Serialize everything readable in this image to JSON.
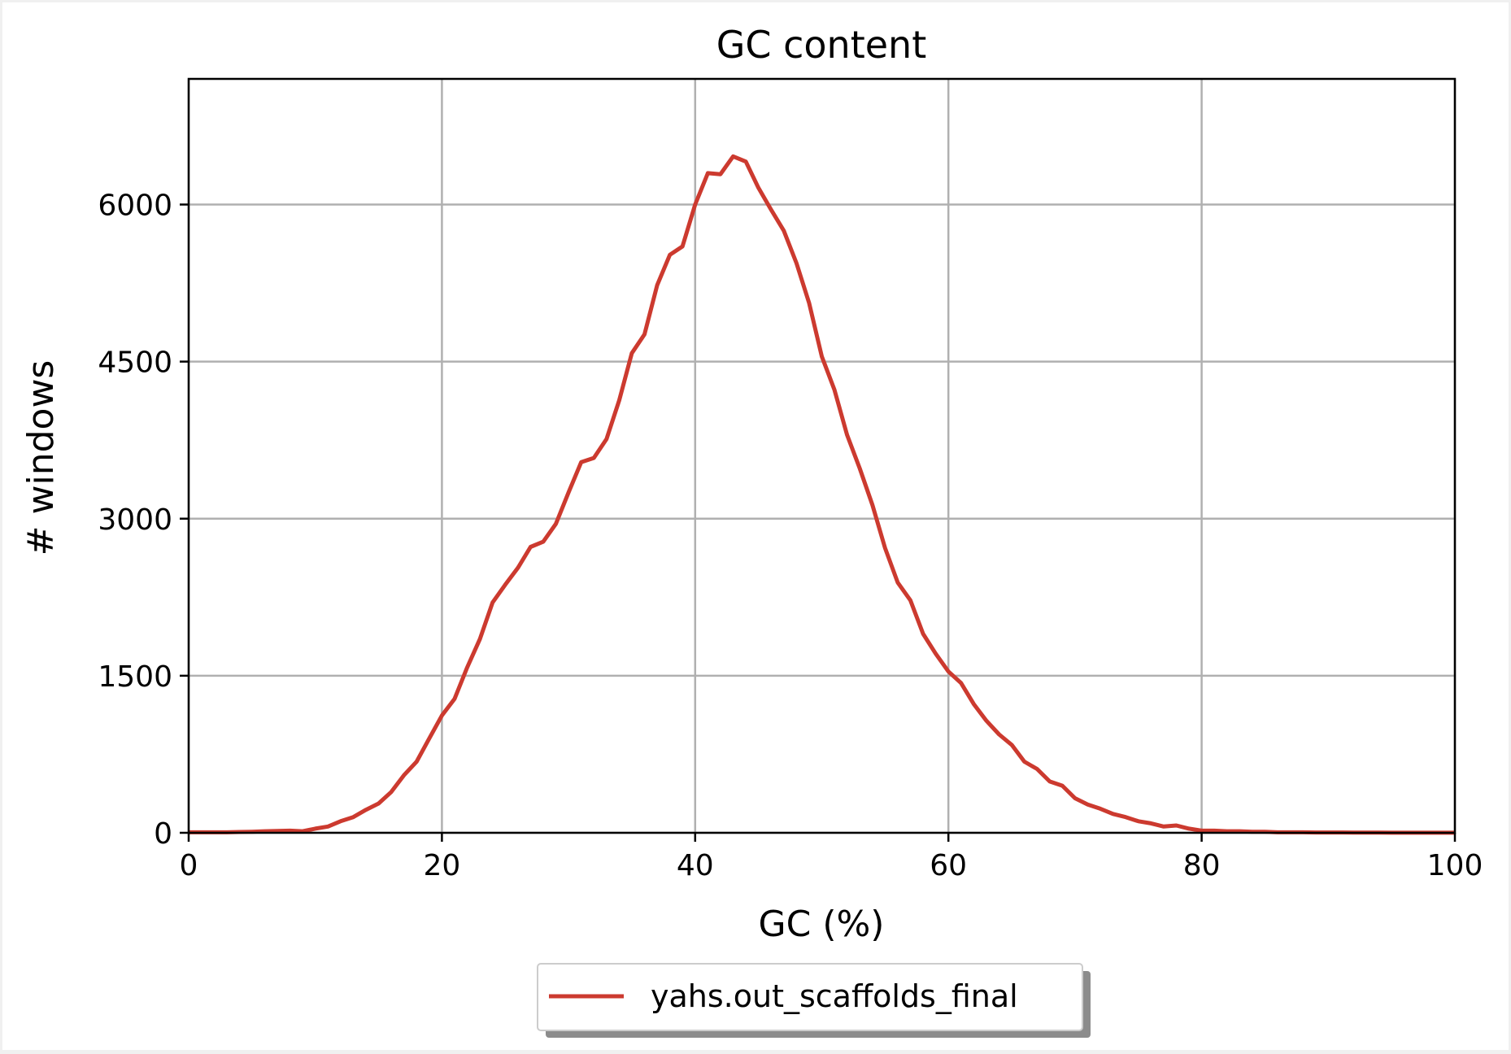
{
  "chart_data": {
    "type": "line",
    "title": "GC content",
    "xlabel": "GC (%)",
    "ylabel": "# windows",
    "xlim": [
      0,
      100
    ],
    "ylim": [
      0,
      7200
    ],
    "xticks": [
      0,
      20,
      40,
      60,
      80,
      100
    ],
    "yticks": [
      0,
      1500,
      3000,
      4500,
      6000
    ],
    "grid": true,
    "legend_position": "bottom-center",
    "series": [
      {
        "name": "yahs.out_scaffolds_final",
        "color": "#cc3a2f",
        "x": [
          0,
          1,
          2,
          3,
          4,
          5,
          6,
          7,
          8,
          9,
          10,
          11,
          12,
          13,
          14,
          15,
          16,
          17,
          18,
          19,
          20,
          21,
          22,
          23,
          24,
          25,
          26,
          27,
          28,
          29,
          30,
          31,
          32,
          33,
          34,
          35,
          36,
          37,
          38,
          39,
          40,
          41,
          42,
          43,
          44,
          45,
          46,
          47,
          48,
          49,
          50,
          51,
          52,
          53,
          54,
          55,
          56,
          57,
          58,
          59,
          60,
          61,
          62,
          63,
          64,
          65,
          66,
          67,
          68,
          69,
          70,
          71,
          72,
          73,
          74,
          75,
          76,
          77,
          78,
          79,
          80,
          81,
          82,
          83,
          84,
          85,
          86,
          87,
          88,
          89,
          90,
          91,
          92,
          93,
          94,
          95,
          96,
          97,
          98,
          99,
          100
        ],
        "y": [
          5,
          5,
          5,
          5,
          8,
          10,
          15,
          18,
          20,
          15,
          40,
          60,
          110,
          150,
          220,
          280,
          390,
          550,
          680,
          900,
          1120,
          1280,
          1580,
          1850,
          2200,
          2370,
          2530,
          2730,
          2780,
          2950,
          3250,
          3540,
          3580,
          3760,
          4130,
          4580,
          4760,
          5230,
          5520,
          5600,
          6000,
          6300,
          6290,
          6460,
          6410,
          6160,
          5950,
          5750,
          5440,
          5060,
          4550,
          4230,
          3800,
          3480,
          3130,
          2720,
          2390,
          2220,
          1900,
          1710,
          1540,
          1430,
          1230,
          1070,
          940,
          840,
          680,
          610,
          490,
          450,
          330,
          270,
          230,
          180,
          150,
          110,
          90,
          60,
          70,
          40,
          20,
          20,
          15,
          15,
          10,
          10,
          5,
          5,
          5,
          3,
          3,
          3,
          2,
          2,
          2,
          1,
          1,
          1,
          1,
          1,
          1
        ]
      }
    ]
  }
}
